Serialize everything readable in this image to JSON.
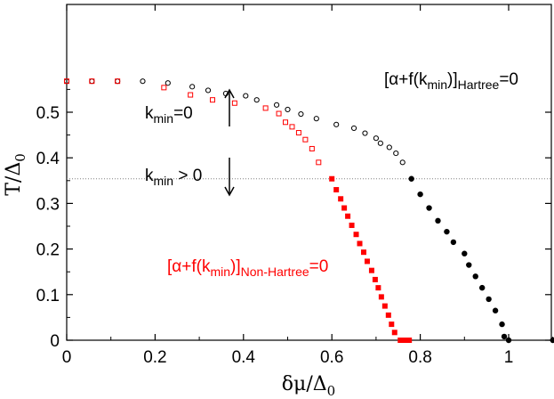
{
  "chart_data": {
    "type": "scatter",
    "xlim": [
      0,
      1.1
    ],
    "ylim": [
      0,
      0.6
    ],
    "x_ticks": [
      "0",
      "0.2",
      "0.4",
      "0.6",
      "0.8",
      "1"
    ],
    "x_tick_values": [
      0,
      0.2,
      0.4,
      0.6,
      0.8,
      1.0
    ],
    "y_ticks": [
      "0",
      "0.1",
      "0.2",
      "0.3",
      "0.4",
      "0.5"
    ],
    "y_tick_values": [
      0,
      0.1,
      0.2,
      0.3,
      0.4,
      0.5
    ],
    "xlabel": {
      "main": "δμ/Δ",
      "sub": "0"
    },
    "ylabel": {
      "main": "T/Δ",
      "sub": "0"
    },
    "grid": false,
    "reference_line": {
      "y": 0.354,
      "style": "dotted",
      "color": "#808080"
    },
    "series": [
      {
        "marker": "open-circle",
        "color": "#000000",
        "points": [
          [
            0.0,
            0.568
          ],
          [
            0.057,
            0.568
          ],
          [
            0.115,
            0.568
          ],
          [
            0.172,
            0.568
          ],
          [
            0.229,
            0.564
          ],
          [
            0.284,
            0.556
          ],
          [
            0.32,
            0.548
          ],
          [
            0.36,
            0.541
          ],
          [
            0.405,
            0.536
          ],
          [
            0.43,
            0.527
          ],
          [
            0.475,
            0.516
          ],
          [
            0.5,
            0.506
          ],
          [
            0.53,
            0.496
          ],
          [
            0.565,
            0.486
          ],
          [
            0.61,
            0.473
          ],
          [
            0.65,
            0.465
          ],
          [
            0.675,
            0.454
          ],
          [
            0.7,
            0.443
          ],
          [
            0.71,
            0.432
          ],
          [
            0.73,
            0.423
          ],
          [
            0.745,
            0.41
          ],
          [
            0.76,
            0.39
          ]
        ]
      },
      {
        "marker": "open-square",
        "color": "#ff0000",
        "points": [
          [
            0.0,
            0.568
          ],
          [
            0.057,
            0.568
          ],
          [
            0.115,
            0.568
          ],
          [
            0.22,
            0.554
          ],
          [
            0.28,
            0.538
          ],
          [
            0.33,
            0.527
          ],
          [
            0.38,
            0.52
          ],
          [
            0.45,
            0.509
          ],
          [
            0.48,
            0.497
          ],
          [
            0.495,
            0.478
          ],
          [
            0.51,
            0.468
          ],
          [
            0.525,
            0.455
          ],
          [
            0.54,
            0.44
          ],
          [
            0.555,
            0.42
          ],
          [
            0.57,
            0.39
          ]
        ]
      },
      {
        "marker": "filled-circle",
        "color": "#000000",
        "points": [
          [
            0.78,
            0.354
          ],
          [
            0.8,
            0.32
          ],
          [
            0.82,
            0.29
          ],
          [
            0.84,
            0.262
          ],
          [
            0.86,
            0.238
          ],
          [
            0.875,
            0.215
          ],
          [
            0.9,
            0.19
          ],
          [
            0.91,
            0.165
          ],
          [
            0.925,
            0.14
          ],
          [
            0.94,
            0.115
          ],
          [
            0.955,
            0.09
          ],
          [
            0.97,
            0.065
          ],
          [
            0.985,
            0.035
          ],
          [
            0.99,
            0.008
          ],
          [
            1.0,
            0.0
          ],
          [
            1.1,
            0.0
          ]
        ]
      },
      {
        "marker": "filled-square",
        "color": "#ff0000",
        "points": [
          [
            0.6,
            0.354
          ],
          [
            0.61,
            0.33
          ],
          [
            0.62,
            0.31
          ],
          [
            0.628,
            0.29
          ],
          [
            0.636,
            0.272
          ],
          [
            0.645,
            0.252
          ],
          [
            0.655,
            0.232
          ],
          [
            0.663,
            0.212
          ],
          [
            0.672,
            0.193
          ],
          [
            0.68,
            0.173
          ],
          [
            0.69,
            0.153
          ],
          [
            0.698,
            0.133
          ],
          [
            0.705,
            0.115
          ],
          [
            0.712,
            0.095
          ],
          [
            0.72,
            0.075
          ],
          [
            0.728,
            0.055
          ],
          [
            0.735,
            0.035
          ],
          [
            0.742,
            0.017
          ],
          [
            0.755,
            0.0
          ],
          [
            0.765,
            0.0
          ],
          [
            0.775,
            0.0
          ]
        ]
      }
    ],
    "annotations": [
      {
        "id": "hartree",
        "color": "#000000",
        "prefix": "[α+f(k",
        "sub1": "min",
        "mid": ")]",
        "sub2": "Hartree",
        "suffix": "=0"
      },
      {
        "id": "non-hartree",
        "color": "#ff0000",
        "prefix": "[α+f(k",
        "sub1": "min",
        "mid": ")]",
        "sub2": "Non-Hartree",
        "suffix": "=0"
      },
      {
        "id": "kmin-zero",
        "color": "#000000",
        "prefix": "k",
        "sub1": "min",
        "suffix": "=0",
        "arrow": "up"
      },
      {
        "id": "kmin-positive",
        "color": "#000000",
        "prefix": "k",
        "sub1": "min",
        "suffix": " > 0",
        "arrow": "down"
      }
    ]
  }
}
